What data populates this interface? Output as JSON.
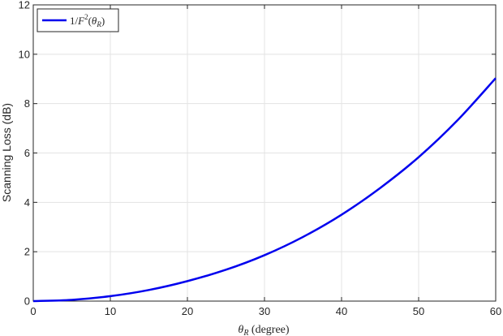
{
  "chart_data": {
    "type": "line",
    "title": "",
    "xlabel_var": "θ",
    "xlabel_sub": "R",
    "xlabel_rest": " (degree)",
    "ylabel": "Scanning Loss (dB)",
    "xlim": [
      0,
      60
    ],
    "ylim": [
      0,
      12
    ],
    "xticks": [
      0,
      10,
      20,
      30,
      40,
      50,
      60
    ],
    "yticks": [
      0,
      2,
      4,
      6,
      8,
      10,
      12
    ],
    "grid": true,
    "legend_position": "top-left",
    "series": [
      {
        "name": "1/F²(θR)",
        "legend_parts": {
          "prefix": "1/",
          "F": "F",
          "sup": "2",
          "open": "(",
          "theta": "θ",
          "sub": "R",
          "close": ")"
        },
        "color": "#0000ee",
        "x": [
          0,
          5,
          10,
          15,
          20,
          25,
          30,
          35,
          40,
          45,
          50,
          55,
          60
        ],
        "y": [
          0.0,
          0.05,
          0.2,
          0.45,
          0.81,
          1.27,
          1.86,
          2.6,
          3.5,
          4.58,
          5.83,
          7.31,
          9.03
        ]
      }
    ]
  }
}
